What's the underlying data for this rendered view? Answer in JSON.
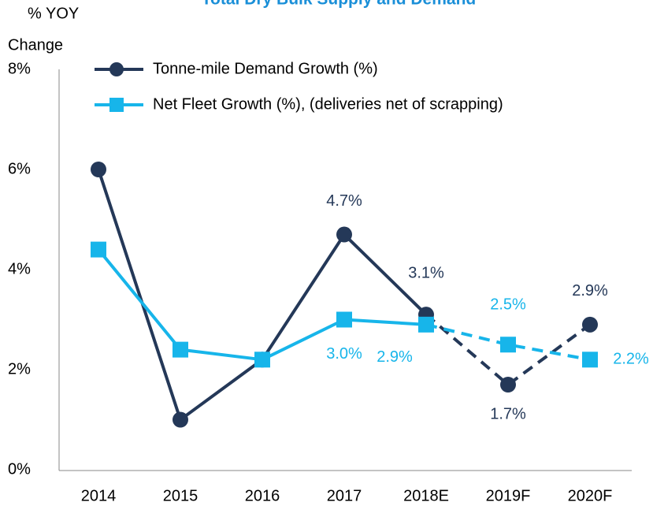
{
  "chart_data": {
    "type": "line",
    "title": "Total Dry Bulk Supply and Demand",
    "ylabel": [
      "% YOY",
      "Change"
    ],
    "categories": [
      "2014",
      "2015",
      "2016",
      "2017",
      "2018E",
      "2019F",
      "2020F"
    ],
    "series": [
      {
        "name": "Tonne-mile Demand Growth (%)",
        "color": "#243858",
        "marker": "circle",
        "values": [
          6.0,
          1.0,
          2.2,
          4.7,
          3.1,
          1.7,
          2.9
        ],
        "value_labels": [
          null,
          null,
          null,
          "4.7%",
          "3.1%",
          "1.7%",
          "2.9%"
        ]
      },
      {
        "name": "Net Fleet Growth (%), (deliveries net of scrapping)",
        "color": "#17b5ea",
        "marker": "square",
        "values": [
          4.4,
          2.4,
          2.2,
          3.0,
          2.9,
          2.5,
          2.2
        ],
        "value_labels": [
          null,
          null,
          null,
          "3.0%",
          "2.9%",
          "2.5%",
          "2.2%"
        ]
      }
    ],
    "dashed_from": 4,
    "ylim": [
      0,
      8
    ],
    "yticks": [
      {
        "value": 0,
        "label": "0%"
      },
      {
        "value": 2,
        "label": "2%"
      },
      {
        "value": 4,
        "label": "4%"
      },
      {
        "value": 6,
        "label": "6%"
      },
      {
        "value": 8,
        "label": "8%"
      }
    ],
    "grid": false
  }
}
